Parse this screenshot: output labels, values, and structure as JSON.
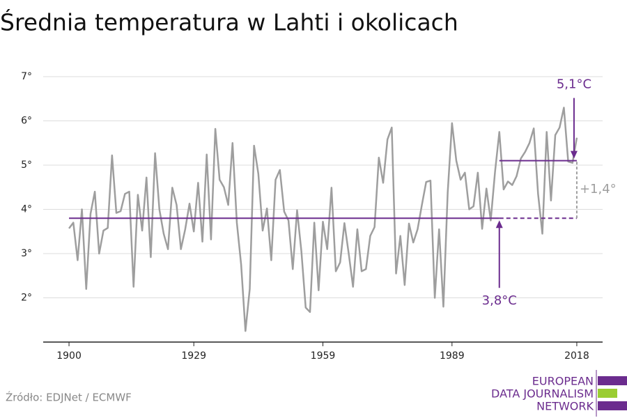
{
  "chart_data": {
    "type": "line",
    "title": "Średnia temperatura w Lahti i okolicach",
    "source": "Źródło: EDJNet / ECMWF",
    "logo": [
      "EUROPEAN",
      "DATA JOURNALISM",
      "NETWORK"
    ],
    "x": [
      1900,
      1901,
      1902,
      1903,
      1904,
      1905,
      1906,
      1907,
      1908,
      1909,
      1910,
      1911,
      1912,
      1913,
      1914,
      1915,
      1916,
      1917,
      1918,
      1919,
      1920,
      1921,
      1922,
      1923,
      1924,
      1925,
      1926,
      1927,
      1928,
      1929,
      1930,
      1931,
      1932,
      1933,
      1934,
      1935,
      1936,
      1937,
      1938,
      1939,
      1940,
      1941,
      1942,
      1943,
      1944,
      1945,
      1946,
      1947,
      1948,
      1949,
      1950,
      1951,
      1952,
      1953,
      1954,
      1955,
      1956,
      1957,
      1958,
      1959,
      1960,
      1961,
      1962,
      1963,
      1964,
      1965,
      1966,
      1967,
      1968,
      1969,
      1970,
      1971,
      1972,
      1973,
      1974,
      1975,
      1976,
      1977,
      1978,
      1979,
      1980,
      1981,
      1982,
      1983,
      1984,
      1985,
      1986,
      1987,
      1988,
      1989,
      1990,
      1991,
      1992,
      1993,
      1994,
      1995,
      1996,
      1997,
      1998,
      1999,
      2000,
      2001,
      2002,
      2003,
      2004,
      2005,
      2006,
      2007,
      2008,
      2009,
      2010,
      2011,
      2012,
      2013,
      2014,
      2015,
      2016,
      2017,
      2018
    ],
    "series": [
      {
        "color": "#9e9e9e",
        "values": [
          3.57,
          3.7,
          2.85,
          4.0,
          2.2,
          3.9,
          4.4,
          3.0,
          3.52,
          3.58,
          5.22,
          3.92,
          3.96,
          4.35,
          4.4,
          2.25,
          4.33,
          3.52,
          4.72,
          2.92,
          5.27,
          4.0,
          3.45,
          3.1,
          4.49,
          4.1,
          3.1,
          3.55,
          4.13,
          3.5,
          4.6,
          3.27,
          5.24,
          3.32,
          5.82,
          4.67,
          4.5,
          4.1,
          5.5,
          3.7,
          2.75,
          1.25,
          2.2,
          5.44,
          4.8,
          3.52,
          4.02,
          2.85,
          4.67,
          4.89,
          3.95,
          3.75,
          2.65,
          3.98,
          3.05,
          1.78,
          1.68,
          3.7,
          2.17,
          3.72,
          3.1,
          4.49,
          2.6,
          2.8,
          3.69,
          3.0,
          2.25,
          3.55,
          2.6,
          2.65,
          3.4,
          3.6,
          5.17,
          4.6,
          5.58,
          5.85,
          2.55,
          3.4,
          2.29,
          3.68,
          3.25,
          3.55,
          4.1,
          4.62,
          4.65,
          2.0,
          3.55,
          1.8,
          4.38,
          5.95,
          5.1,
          4.67,
          4.83,
          4.0,
          4.07,
          4.83,
          3.56,
          4.47,
          3.75,
          4.85,
          5.75,
          4.45,
          4.63,
          4.55,
          4.75,
          5.15,
          5.3,
          5.5,
          5.83,
          4.35,
          3.45,
          5.75,
          4.2,
          5.68,
          5.85,
          6.3,
          5.08,
          5.05,
          5.62
        ]
      }
    ],
    "reference_lines": [
      {
        "value": 3.8,
        "label": "3,8°C",
        "color": "#6b2c8e",
        "from": 1900,
        "to": 2018,
        "dashed_from": 2000
      },
      {
        "value": 5.1,
        "label": "5,1°C",
        "color": "#6b2c8e",
        "from": 2000,
        "to": 2018
      }
    ],
    "difference": {
      "value": 1.4,
      "label": "+1,4°",
      "color": "#9e9e9e"
    },
    "xlim": [
      1894,
      2024
    ],
    "xticks": [
      1900,
      1929,
      1959,
      1989,
      2018
    ],
    "ylim": [
      1,
      7.3
    ],
    "yticks": [
      {
        "value": 2,
        "label": "2°"
      },
      {
        "value": 3,
        "label": "3°"
      },
      {
        "value": 4,
        "label": "4°"
      },
      {
        "value": 5,
        "label": "5°"
      },
      {
        "value": 6,
        "label": "6°"
      },
      {
        "value": 7,
        "label": "7°"
      }
    ],
    "grid": true
  }
}
